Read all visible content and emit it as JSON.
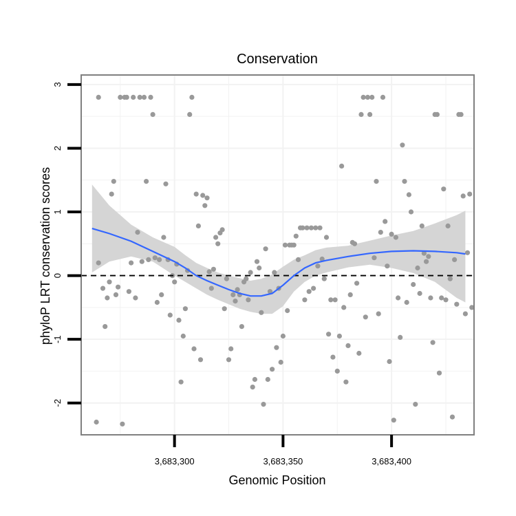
{
  "chart_data": {
    "type": "scatter",
    "title": "Conservation",
    "xlabel": "Genomic Position",
    "ylabel": "phyloP LRT conservation scores",
    "xlim": [
      3683257,
      3683438
    ],
    "ylim": [
      -2.5,
      3.15
    ],
    "x_ticks": [
      3683300,
      3683350,
      3683400
    ],
    "x_tick_labels": [
      "3,683,300",
      "3,683,350",
      "3,683,400"
    ],
    "y_ticks": [
      -2,
      -1,
      0,
      1,
      2,
      3
    ],
    "y_tick_labels": [
      "-2",
      "-1",
      "0",
      "1",
      "2",
      "3"
    ],
    "grid": true,
    "reference_line": {
      "y": 0,
      "style": "dashed",
      "color": "#000000"
    },
    "colors": {
      "points": "#999999",
      "smooth": "#3366FF",
      "band": "#D3D3D3",
      "panel_border": "#7F7F7F",
      "grid": "#F2F2F2"
    },
    "points": [
      [
        3683265,
        2.8
      ],
      [
        3683264,
        -2.3
      ],
      [
        3683265,
        0.2
      ],
      [
        3683267,
        -0.2
      ],
      [
        3683268,
        -0.8
      ],
      [
        3683269,
        -0.35
      ],
      [
        3683270,
        -0.1
      ],
      [
        3683271,
        1.28
      ],
      [
        3683272,
        1.48
      ],
      [
        3683273,
        -0.3
      ],
      [
        3683274,
        -0.18
      ],
      [
        3683275,
        2.8
      ],
      [
        3683276,
        -2.33
      ],
      [
        3683277,
        2.8
      ],
      [
        3683278,
        2.8
      ],
      [
        3683279,
        -0.25
      ],
      [
        3683280,
        0.2
      ],
      [
        3683281,
        2.8
      ],
      [
        3683282,
        -0.35
      ],
      [
        3683283,
        0.68
      ],
      [
        3683284,
        2.8
      ],
      [
        3683285,
        0.22
      ],
      [
        3683286,
        2.8
      ],
      [
        3683287,
        1.48
      ],
      [
        3683288,
        0.25
      ],
      [
        3683289,
        2.8
      ],
      [
        3683290,
        2.53
      ],
      [
        3683291,
        0.28
      ],
      [
        3683292,
        -0.42
      ],
      [
        3683293,
        0.25
      ],
      [
        3683294,
        -0.3
      ],
      [
        3683295,
        0.6
      ],
      [
        3683296,
        1.44
      ],
      [
        3683297,
        0.25
      ],
      [
        3683298,
        -0.62
      ],
      [
        3683299,
        0.0
      ],
      [
        3683300,
        -0.1
      ],
      [
        3683301,
        0.18
      ],
      [
        3683302,
        -0.7
      ],
      [
        3683303,
        -1.67
      ],
      [
        3683304,
        -0.95
      ],
      [
        3683305,
        -0.52
      ],
      [
        3683306,
        0.08
      ],
      [
        3683307,
        2.53
      ],
      [
        3683308,
        2.8
      ],
      [
        3683309,
        -1.15
      ],
      [
        3683310,
        1.28
      ],
      [
        3683311,
        0.78
      ],
      [
        3683312,
        -1.32
      ],
      [
        3683313,
        1.26
      ],
      [
        3683314,
        1.1
      ],
      [
        3683315,
        1.22
      ],
      [
        3683316,
        0.06
      ],
      [
        3683317,
        -0.2
      ],
      [
        3683318,
        0.1
      ],
      [
        3683319,
        0.6
      ],
      [
        3683320,
        0.5
      ],
      [
        3683321,
        0.67
      ],
      [
        3683322,
        0.72
      ],
      [
        3683323,
        -0.52
      ],
      [
        3683324,
        -0.05
      ],
      [
        3683325,
        -1.32
      ],
      [
        3683326,
        -1.15
      ],
      [
        3683327,
        -0.3
      ],
      [
        3683328,
        -0.4
      ],
      [
        3683329,
        -0.22
      ],
      [
        3683330,
        -0.3
      ],
      [
        3683331,
        -0.8
      ],
      [
        3683332,
        -0.1
      ],
      [
        3683333,
        -0.05
      ],
      [
        3683334,
        -0.38
      ],
      [
        3683335,
        0.05
      ],
      [
        3683336,
        -1.75
      ],
      [
        3683337,
        -1.63
      ],
      [
        3683338,
        0.22
      ],
      [
        3683339,
        0.12
      ],
      [
        3683340,
        -0.58
      ],
      [
        3683341,
        -2.02
      ],
      [
        3683342,
        0.42
      ],
      [
        3683343,
        -1.63
      ],
      [
        3683344,
        -0.25
      ],
      [
        3683345,
        -1.47
      ],
      [
        3683346,
        0.05
      ],
      [
        3683347,
        -1.13
      ],
      [
        3683348,
        -0.2
      ],
      [
        3683349,
        -1.36
      ],
      [
        3683350,
        -0.95
      ],
      [
        3683351,
        0.48
      ],
      [
        3683352,
        -0.55
      ],
      [
        3683353,
        0.48
      ],
      [
        3683354,
        0.48
      ],
      [
        3683355,
        0.48
      ],
      [
        3683356,
        0.62
      ],
      [
        3683357,
        0.25
      ],
      [
        3683358,
        0.75
      ],
      [
        3683359,
        0.75
      ],
      [
        3683360,
        -0.38
      ],
      [
        3683361,
        0.75
      ],
      [
        3683362,
        -0.25
      ],
      [
        3683363,
        0.75
      ],
      [
        3683364,
        -0.2
      ],
      [
        3683365,
        0.75
      ],
      [
        3683366,
        0.15
      ],
      [
        3683367,
        0.75
      ],
      [
        3683368,
        0.26
      ],
      [
        3683369,
        -0.05
      ],
      [
        3683370,
        0.6
      ],
      [
        3683371,
        -0.92
      ],
      [
        3683372,
        -0.38
      ],
      [
        3683373,
        -1.28
      ],
      [
        3683374,
        -0.38
      ],
      [
        3683375,
        -1.5
      ],
      [
        3683376,
        -0.95
      ],
      [
        3683377,
        1.72
      ],
      [
        3683378,
        -0.5
      ],
      [
        3683379,
        -1.67
      ],
      [
        3683380,
        -1.1
      ],
      [
        3683381,
        -0.3
      ],
      [
        3683382,
        0.52
      ],
      [
        3683383,
        0.5
      ],
      [
        3683384,
        -0.12
      ],
      [
        3683385,
        -1.22
      ],
      [
        3683386,
        2.53
      ],
      [
        3683387,
        2.8
      ],
      [
        3683388,
        -0.65
      ],
      [
        3683389,
        2.8
      ],
      [
        3683390,
        2.53
      ],
      [
        3683391,
        2.8
      ],
      [
        3683392,
        0.28
      ],
      [
        3683393,
        1.48
      ],
      [
        3683394,
        -0.6
      ],
      [
        3683395,
        0.68
      ],
      [
        3683396,
        2.8
      ],
      [
        3683397,
        0.85
      ],
      [
        3683398,
        0.15
      ],
      [
        3683399,
        -1.35
      ],
      [
        3683400,
        0.65
      ],
      [
        3683401,
        -2.27
      ],
      [
        3683402,
        0.6
      ],
      [
        3683403,
        -0.35
      ],
      [
        3683404,
        -0.97
      ],
      [
        3683405,
        2.05
      ],
      [
        3683406,
        1.48
      ],
      [
        3683407,
        -0.42
      ],
      [
        3683408,
        1.27
      ],
      [
        3683409,
        1.0
      ],
      [
        3683410,
        -0.14
      ],
      [
        3683411,
        -2.02
      ],
      [
        3683412,
        0.12
      ],
      [
        3683413,
        -0.28
      ],
      [
        3683414,
        0.78
      ],
      [
        3683415,
        0.35
      ],
      [
        3683416,
        0.22
      ],
      [
        3683417,
        0.3
      ],
      [
        3683418,
        -0.35
      ],
      [
        3683419,
        -1.05
      ],
      [
        3683420,
        2.53
      ],
      [
        3683421,
        2.53
      ],
      [
        3683422,
        -1.53
      ],
      [
        3683423,
        -0.35
      ],
      [
        3683424,
        1.36
      ],
      [
        3683425,
        -0.38
      ],
      [
        3683426,
        0.78
      ],
      [
        3683427,
        -0.05
      ],
      [
        3683428,
        -2.22
      ],
      [
        3683429,
        0.25
      ],
      [
        3683430,
        -0.45
      ],
      [
        3683431,
        2.53
      ],
      [
        3683432,
        2.53
      ],
      [
        3683433,
        1.25
      ],
      [
        3683434,
        -0.6
      ],
      [
        3683435,
        0.36
      ],
      [
        3683436,
        1.28
      ],
      [
        3683437,
        -0.5
      ]
    ],
    "smooth": {
      "x": [
        3683262,
        3683270,
        3683280,
        3683290,
        3683300,
        3683305,
        3683310,
        3683315,
        3683320,
        3683325,
        3683330,
        3683335,
        3683340,
        3683345,
        3683350,
        3683355,
        3683360,
        3683365,
        3683370,
        3683380,
        3683390,
        3683400,
        3683410,
        3683420,
        3683430,
        3683434
      ],
      "y": [
        0.74,
        0.66,
        0.54,
        0.38,
        0.22,
        0.12,
        0.0,
        -0.08,
        -0.15,
        -0.22,
        -0.28,
        -0.32,
        -0.32,
        -0.28,
        -0.15,
        0.0,
        0.12,
        0.2,
        0.24,
        0.3,
        0.35,
        0.38,
        0.39,
        0.38,
        0.36,
        0.34
      ],
      "lower": [
        0.05,
        0.22,
        0.3,
        0.22,
        0.0,
        -0.1,
        -0.2,
        -0.3,
        -0.38,
        -0.45,
        -0.52,
        -0.57,
        -0.6,
        -0.6,
        -0.48,
        -0.25,
        -0.1,
        0.0,
        0.05,
        0.13,
        0.17,
        0.12,
        0.04,
        -0.1,
        -0.35,
        -0.42
      ],
      "upper": [
        1.43,
        1.1,
        0.8,
        0.6,
        0.45,
        0.32,
        0.2,
        0.12,
        0.05,
        0.0,
        -0.04,
        -0.08,
        -0.05,
        0.02,
        0.14,
        0.25,
        0.32,
        0.4,
        0.44,
        0.47,
        0.55,
        0.63,
        0.7,
        0.82,
        0.95,
        1.02
      ]
    }
  }
}
